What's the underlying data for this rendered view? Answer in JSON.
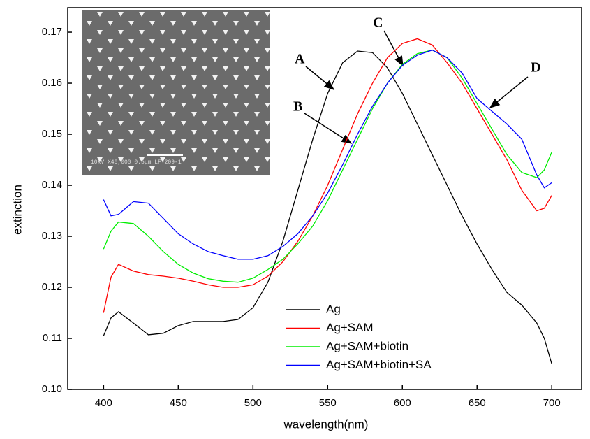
{
  "chart_data": {
    "type": "line",
    "xlabel": "wavelength(nm)",
    "ylabel": "extinction",
    "x": [
      400,
      405,
      410,
      420,
      430,
      440,
      450,
      460,
      470,
      480,
      490,
      500,
      510,
      520,
      530,
      540,
      550,
      560,
      570,
      580,
      590,
      600,
      610,
      620,
      630,
      640,
      650,
      660,
      670,
      680,
      690,
      695,
      700
    ],
    "series": [
      {
        "name": "Ag",
        "color": "#000000",
        "values": [
          0.1105,
          0.114,
          0.1152,
          0.113,
          0.1107,
          0.111,
          0.1125,
          0.1133,
          0.1133,
          0.1133,
          0.1137,
          0.116,
          0.121,
          0.129,
          0.139,
          0.149,
          0.158,
          0.164,
          0.1663,
          0.166,
          0.163,
          0.158,
          0.152,
          0.146,
          0.14,
          0.134,
          0.1285,
          0.1235,
          0.119,
          0.1165,
          0.113,
          0.11,
          0.105
        ]
      },
      {
        "name": "Ag+SAM",
        "color": "#ff0000",
        "values": [
          0.115,
          0.122,
          0.1245,
          0.1232,
          0.1225,
          0.1222,
          0.1218,
          0.1212,
          0.1205,
          0.12,
          0.12,
          0.1205,
          0.1222,
          0.125,
          0.129,
          0.134,
          0.14,
          0.147,
          0.154,
          0.16,
          0.165,
          0.1678,
          0.1687,
          0.1675,
          0.164,
          0.16,
          0.155,
          0.15,
          0.145,
          0.139,
          0.135,
          0.1355,
          0.138
        ]
      },
      {
        "name": "Ag+SAM+biotin",
        "color": "#00ee00",
        "values": [
          0.1275,
          0.131,
          0.1328,
          0.1325,
          0.13,
          0.127,
          0.1245,
          0.1228,
          0.1217,
          0.1212,
          0.121,
          0.1218,
          0.1235,
          0.1255,
          0.1285,
          0.132,
          0.137,
          0.143,
          0.149,
          0.155,
          0.16,
          0.1637,
          0.1658,
          0.1665,
          0.165,
          0.161,
          0.156,
          0.151,
          0.146,
          0.1425,
          0.1415,
          0.143,
          0.1465
        ]
      },
      {
        "name": "Ag+SAM+biotin+SA",
        "color": "#0000ff",
        "values": [
          0.1372,
          0.134,
          0.1343,
          0.1368,
          0.1365,
          0.1335,
          0.1305,
          0.1285,
          0.127,
          0.1262,
          0.1255,
          0.1255,
          0.1262,
          0.128,
          0.1305,
          0.134,
          0.1385,
          0.144,
          0.15,
          0.1555,
          0.16,
          0.1635,
          0.1655,
          0.1665,
          0.165,
          0.162,
          0.157,
          0.1545,
          0.152,
          0.149,
          0.142,
          0.1395,
          0.1405
        ]
      }
    ],
    "xlim": [
      376,
      720
    ],
    "ylim": [
      0.1,
      0.1748
    ],
    "xticks": [
      400,
      450,
      500,
      550,
      600,
      650,
      700
    ],
    "yticks": [
      {
        "value": 0.1,
        "label": "0.10"
      },
      0.11,
      0.12,
      0.13,
      0.14,
      0.15,
      0.16,
      0.17
    ],
    "annotations": [
      "A",
      "B",
      "C",
      "D"
    ],
    "inset_caption": "10kV  X40,000  0.5μm    LF-209-1"
  }
}
